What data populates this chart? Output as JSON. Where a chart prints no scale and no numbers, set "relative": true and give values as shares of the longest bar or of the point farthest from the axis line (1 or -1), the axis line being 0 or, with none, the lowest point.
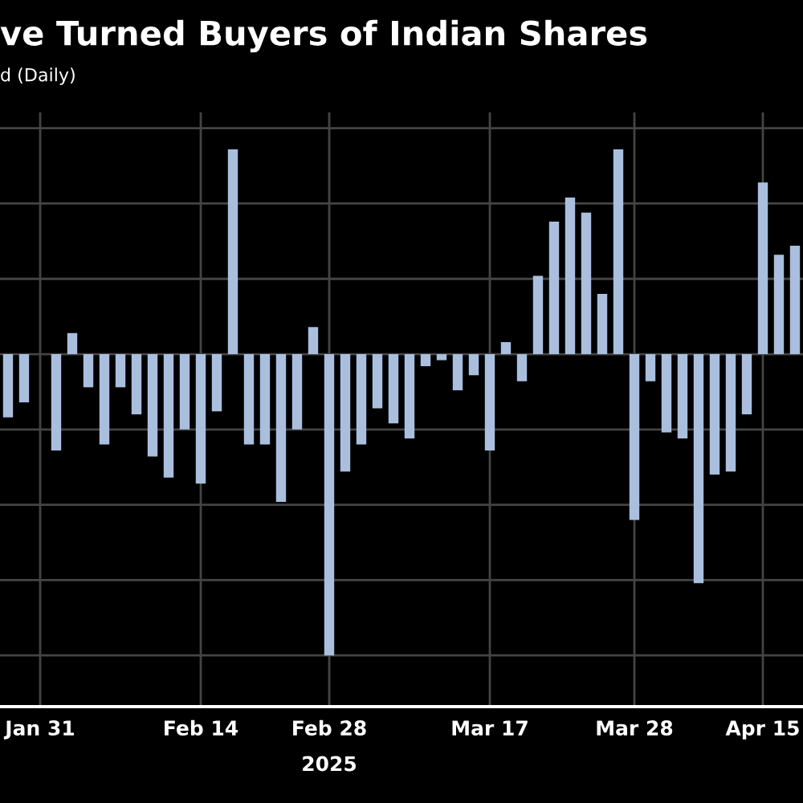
{
  "chart_data": {
    "type": "bar",
    "title": "ve Turned Buyers of Indian Shares",
    "subtitle": "d (Daily)",
    "categories": [
      null,
      null,
      "Jan 31",
      null,
      null,
      null,
      null,
      null,
      null,
      null,
      null,
      null,
      "Feb 14",
      null,
      null,
      null,
      null,
      null,
      null,
      null,
      "Feb 28",
      null,
      null,
      null,
      null,
      null,
      null,
      null,
      null,
      null,
      "Mar 17",
      null,
      null,
      null,
      null,
      null,
      null,
      null,
      null,
      "Mar 28",
      null,
      null,
      null,
      null,
      null,
      null,
      null,
      "Apr 15",
      null,
      null
    ],
    "values": [
      -0.21,
      -0.16,
      null,
      -0.32,
      0.07,
      -0.11,
      -0.3,
      -0.11,
      -0.2,
      -0.34,
      -0.41,
      -0.25,
      -0.43,
      -0.19,
      0.68,
      -0.3,
      -0.3,
      -0.49,
      -0.25,
      0.09,
      -1,
      -0.39,
      -0.3,
      -0.18,
      -0.23,
      -0.28,
      -0.04,
      -0.02,
      -0.12,
      -0.07,
      -0.32,
      0.04,
      -0.09,
      0.26,
      0.44,
      0.52,
      0.47,
      0.2,
      0.68,
      -0.55,
      -0.09,
      -0.26,
      -0.28,
      -0.76,
      -0.4,
      -0.39,
      -0.2,
      0.57,
      0.33,
      0.36
    ],
    "color": "#a9bfdd",
    "relative": true,
    "grid": true,
    "annotations": [
      "2025"
    ]
  }
}
